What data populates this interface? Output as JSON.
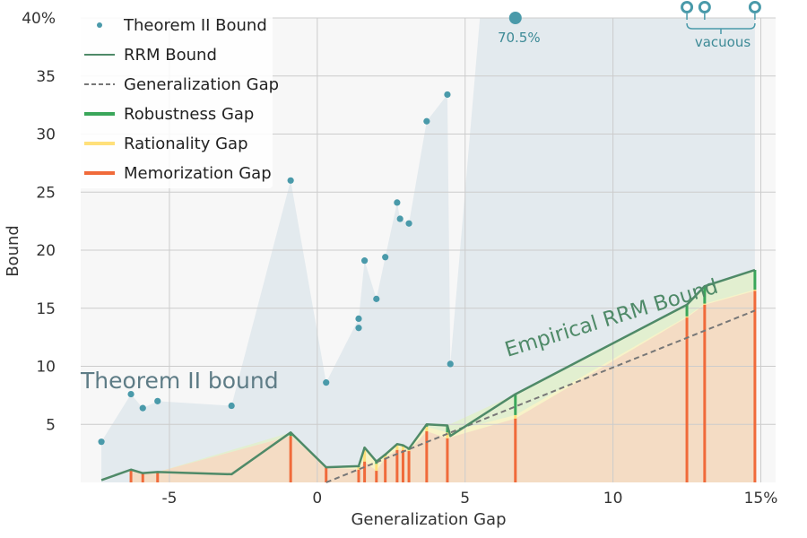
{
  "chart_data": {
    "type": "line",
    "xlabel": "Generalization Gap",
    "ylabel": "Bound",
    "xlim": [
      -8,
      15.5
    ],
    "ylim": [
      0,
      40
    ],
    "x_ticks": [
      {
        "value": -5,
        "label": "-5"
      },
      {
        "value": 0,
        "label": "0"
      },
      {
        "value": 5,
        "label": "5"
      },
      {
        "value": 10,
        "label": "10"
      },
      {
        "value": 15,
        "label": "15%"
      }
    ],
    "y_ticks": [
      {
        "value": 5,
        "label": "5"
      },
      {
        "value": 10,
        "label": "10"
      },
      {
        "value": 15,
        "label": "15"
      },
      {
        "value": 20,
        "label": "20"
      },
      {
        "value": 25,
        "label": "25"
      },
      {
        "value": 30,
        "label": "30"
      },
      {
        "value": 35,
        "label": "35"
      },
      {
        "value": 40,
        "label": "40%"
      }
    ],
    "grid": true,
    "legend": {
      "position": "top-left",
      "entries": [
        {
          "label": "Theorem II Bound",
          "marker": "dot",
          "color": "#4a9aaa"
        },
        {
          "label": "RRM Bound",
          "marker": "line",
          "color": "#4f8a68"
        },
        {
          "label": "Generalization Gap",
          "marker": "dashed",
          "color": "#777777"
        },
        {
          "label": "Robustness Gap",
          "marker": "thick",
          "color": "#3aa65a"
        },
        {
          "label": "Rationality Gap",
          "marker": "thick",
          "color": "#ffe07a"
        },
        {
          "label": "Memorization Gap",
          "marker": "thick",
          "color": "#f06a3a"
        }
      ]
    },
    "theorem_points": [
      {
        "x": -7.3,
        "y": 3.5
      },
      {
        "x": -6.3,
        "y": 7.6
      },
      {
        "x": -5.9,
        "y": 6.4
      },
      {
        "x": -5.4,
        "y": 7.0
      },
      {
        "x": -2.9,
        "y": 6.6
      },
      {
        "x": -0.9,
        "y": 26.0
      },
      {
        "x": 0.3,
        "y": 8.6
      },
      {
        "x": 1.4,
        "y": 13.3
      },
      {
        "x": 1.4,
        "y": 14.1
      },
      {
        "x": 1.6,
        "y": 19.1
      },
      {
        "x": 2.0,
        "y": 15.8
      },
      {
        "x": 2.3,
        "y": 19.4
      },
      {
        "x": 2.7,
        "y": 24.1
      },
      {
        "x": 2.8,
        "y": 22.7
      },
      {
        "x": 3.1,
        "y": 22.3
      },
      {
        "x": 3.7,
        "y": 31.1
      },
      {
        "x": 4.4,
        "y": 33.4
      },
      {
        "x": 4.5,
        "y": 10.2
      }
    ],
    "rrm_points": [
      {
        "x": -7.3,
        "y": 0.2
      },
      {
        "x": -6.3,
        "y": 1.1
      },
      {
        "x": -5.9,
        "y": 0.8
      },
      {
        "x": -5.4,
        "y": 0.9
      },
      {
        "x": -2.9,
        "y": 0.7
      },
      {
        "x": -0.9,
        "y": 4.3
      },
      {
        "x": 0.3,
        "y": 1.3
      },
      {
        "x": 1.4,
        "y": 1.4
      },
      {
        "x": 1.6,
        "y": 3.0
      },
      {
        "x": 2.0,
        "y": 1.8
      },
      {
        "x": 2.3,
        "y": 2.4
      },
      {
        "x": 2.7,
        "y": 3.3
      },
      {
        "x": 2.9,
        "y": 3.2
      },
      {
        "x": 3.1,
        "y": 2.9
      },
      {
        "x": 3.7,
        "y": 5.0
      },
      {
        "x": 4.4,
        "y": 4.9
      },
      {
        "x": 4.5,
        "y": 4.0
      },
      {
        "x": 6.7,
        "y": 7.6
      },
      {
        "x": 12.5,
        "y": 15.3
      },
      {
        "x": 13.1,
        "y": 16.9
      },
      {
        "x": 14.8,
        "y": 18.3
      }
    ],
    "gap_bars": [
      {
        "x": -6.3,
        "mem": 1.1,
        "rat": 1.1,
        "rob": 1.1
      },
      {
        "x": -5.9,
        "mem": 0.8,
        "rat": 0.8,
        "rob": 0.8
      },
      {
        "x": -5.4,
        "mem": 0.9,
        "rat": 0.9,
        "rob": 0.9
      },
      {
        "x": -0.9,
        "mem": 4.0,
        "rat": 4.0,
        "rob": 4.3
      },
      {
        "x": 0.3,
        "mem": 1.3,
        "rat": 1.3,
        "rob": 1.3
      },
      {
        "x": 1.4,
        "mem": 1.1,
        "rat": 1.3,
        "rob": 1.4
      },
      {
        "x": 1.6,
        "mem": 1.8,
        "rat": 2.9,
        "rob": 3.0
      },
      {
        "x": 2.0,
        "mem": 1.0,
        "rat": 1.6,
        "rob": 1.8
      },
      {
        "x": 2.3,
        "mem": 2.1,
        "rat": 2.3,
        "rob": 2.4
      },
      {
        "x": 2.7,
        "mem": 2.8,
        "rat": 3.2,
        "rob": 3.3
      },
      {
        "x": 2.9,
        "mem": 2.8,
        "rat": 3.1,
        "rob": 3.2
      },
      {
        "x": 3.1,
        "mem": 2.7,
        "rat": 2.8,
        "rob": 2.9
      },
      {
        "x": 3.7,
        "mem": 4.4,
        "rat": 4.8,
        "rob": 5.0
      },
      {
        "x": 4.4,
        "mem": 3.8,
        "rat": 4.3,
        "rob": 4.9
      },
      {
        "x": 6.7,
        "mem": 5.5,
        "rat": 5.8,
        "rob": 7.6
      },
      {
        "x": 12.5,
        "mem": 14.2,
        "rat": 14.3,
        "rob": 15.3
      },
      {
        "x": 13.1,
        "mem": 15.3,
        "rat": 15.4,
        "rob": 16.9
      },
      {
        "x": 14.8,
        "mem": 16.5,
        "rat": 16.6,
        "rob": 18.3
      }
    ],
    "generalization_line": [
      {
        "x": 0.3,
        "y": 0.0
      },
      {
        "x": 14.8,
        "y": 14.8
      }
    ],
    "offscale_points": [
      {
        "x": 6.7,
        "label": "70.5%",
        "kind": "filled"
      },
      {
        "x": 12.5,
        "label": "",
        "kind": "open"
      },
      {
        "x": 13.1,
        "label": "",
        "kind": "open"
      },
      {
        "x": 14.8,
        "label": "",
        "kind": "open"
      }
    ],
    "vacuous_label": "vacuous",
    "annotations": {
      "theorem_label": "Theorem II bound",
      "rrm_label": "Empirical RRM Bound"
    },
    "colors": {
      "theorem": "#4a9aaa",
      "theorem_fill": "#dfe8ec",
      "rrm": "#4f8a68",
      "gen": "#777777",
      "robustness": "#3aa65a",
      "rationality": "#ffe07a",
      "memorization": "#f06a3a",
      "mem_fill": "#f4dcc4",
      "rat_fill": "#f7f3c8",
      "rob_fill": "#e2efd0",
      "grid": "#cccccc"
    }
  }
}
